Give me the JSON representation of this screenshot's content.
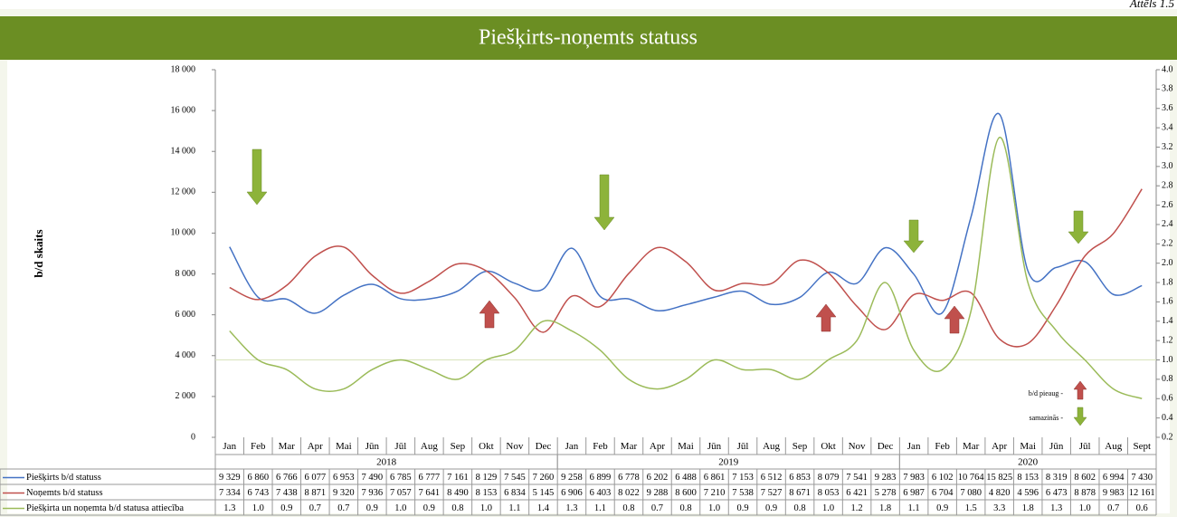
{
  "chart_data": {
    "type": "line",
    "title": "Piešķirts-noņemts statuss",
    "figure_label": "Attēls 1.5",
    "y_label": "b/d skaits",
    "year_groups": [
      {
        "year": "2018",
        "months": [
          "Jan",
          "Feb",
          "Mar",
          "Apr",
          "Mai",
          "Jūn",
          "Jūl",
          "Aug",
          "Sep",
          "Okt",
          "Nov",
          "Dec"
        ]
      },
      {
        "year": "2019",
        "months": [
          "Jan",
          "Feb",
          "Mar",
          "Apr",
          "Mai",
          "Jūn",
          "Jūl",
          "Aug",
          "Sep",
          "Okt",
          "Nov",
          "Dec"
        ]
      },
      {
        "year": "2020",
        "months": [
          "Jan",
          "Feb",
          "Mar",
          "Apr",
          "Mai",
          "Jūn",
          "Jūl",
          "Aug",
          "Sept"
        ]
      }
    ],
    "series": [
      {
        "name": "Piešķirts b/d statuss",
        "color": "#4472c4",
        "values": [
          9329,
          6860,
          6766,
          6077,
          6953,
          7490,
          6785,
          6777,
          7161,
          8129,
          7545,
          7260,
          9258,
          6899,
          6778,
          6202,
          6488,
          6861,
          7153,
          6512,
          6853,
          8079,
          7541,
          9283,
          7983,
          6102,
          10764,
          15825,
          8153,
          8319,
          8602,
          6994,
          7430
        ],
        "value_labels": [
          "9 329",
          "6 860",
          "6 766",
          "6 077",
          "6 953",
          "7 490",
          "6 785",
          "6 777",
          "7 161",
          "8 129",
          "7 545",
          "7 260",
          "9 258",
          "6 899",
          "6 778",
          "6 202",
          "6 488",
          "6 861",
          "7 153",
          "6 512",
          "6 853",
          "8 079",
          "7 541",
          "9 283",
          "7 983",
          "6 102",
          "10 764",
          "15 825",
          "8 153",
          "8 319",
          "8 602",
          "6 994",
          "7 430"
        ]
      },
      {
        "name": "Noņemts b/d statuss",
        "color": "#c0504d",
        "values": [
          7334,
          6743,
          7438,
          8871,
          9320,
          7936,
          7057,
          7641,
          8490,
          8153,
          6834,
          5145,
          6906,
          6403,
          8022,
          9288,
          8600,
          7210,
          7538,
          7527,
          8671,
          8053,
          6421,
          5278,
          6987,
          6704,
          7080,
          4820,
          4596,
          6473,
          8878,
          9983,
          12161
        ],
        "value_labels": [
          "7 334",
          "6 743",
          "7 438",
          "8 871",
          "9 320",
          "7 936",
          "7 057",
          "7 641",
          "8 490",
          "8 153",
          "6 834",
          "5 145",
          "6 906",
          "6 403",
          "8 022",
          "9 288",
          "8 600",
          "7 210",
          "7 538",
          "7 527",
          "8 671",
          "8 053",
          "6 421",
          "5 278",
          "6 987",
          "6 704",
          "7 080",
          "4 820",
          "4 596",
          "6 473",
          "8 878",
          "9 983",
          "12 161"
        ]
      },
      {
        "name": "Piešķirta un noņemta b/d statusa attiecība",
        "color": "#9bbb59",
        "axis": "y2",
        "values": [
          1.3,
          1.0,
          0.9,
          0.7,
          0.7,
          0.9,
          1.0,
          0.9,
          0.8,
          1.0,
          1.1,
          1.4,
          1.3,
          1.1,
          0.8,
          0.7,
          0.8,
          1.0,
          0.9,
          0.9,
          0.8,
          1.0,
          1.2,
          1.8,
          1.1,
          0.9,
          1.5,
          3.3,
          1.8,
          1.3,
          1.0,
          0.7,
          0.6
        ],
        "value_labels": [
          "1.3",
          "1.0",
          "0.9",
          "0.7",
          "0.7",
          "0.9",
          "1.0",
          "0.9",
          "0.8",
          "1.0",
          "1.1",
          "1.4",
          "1.3",
          "1.1",
          "0.8",
          "0.7",
          "0.8",
          "1.0",
          "0.9",
          "0.9",
          "0.8",
          "1.0",
          "1.2",
          "1.8",
          "1.1",
          "0.9",
          "1.5",
          "3.3",
          "1.8",
          "1.3",
          "1.0",
          "0.7",
          "0.6"
        ]
      }
    ],
    "ylim": [
      0,
      18000
    ],
    "yticks": [
      0,
      {
        "value": 2000,
        "label": "2 000"
      },
      {
        "value": 4000,
        "label": "4 000"
      },
      {
        "value": 6000,
        "label": "6 000"
      },
      {
        "value": 8000,
        "label": "8 000"
      },
      {
        "value": 10000,
        "label": "10 000"
      },
      {
        "value": 12000,
        "label": "12 000"
      },
      {
        "value": 14000,
        "label": "14 000"
      },
      {
        "value": 16000,
        "label": "16 000"
      },
      {
        "value": 18000,
        "label": "18 000"
      }
    ],
    "y2lim": [
      0.2,
      4.0
    ],
    "y2ticks": [
      0.2,
      0.4,
      0.6,
      0.8,
      {
        "value": 1,
        "label": "1.0"
      },
      1.2,
      1.4,
      1.6,
      1.8,
      {
        "value": 2,
        "label": "2.0"
      },
      2.2,
      2.4,
      2.6,
      2.8,
      {
        "value": 3,
        "label": "3.0"
      },
      3.2,
      3.4,
      3.6,
      3.8,
      {
        "value": 4,
        "label": "4.0"
      }
    ],
    "reference_line": {
      "axis": "y2",
      "value": 1
    },
    "legend_notes": {
      "increase": "b/d pieaug -",
      "decrease": "samazinās -"
    }
  }
}
